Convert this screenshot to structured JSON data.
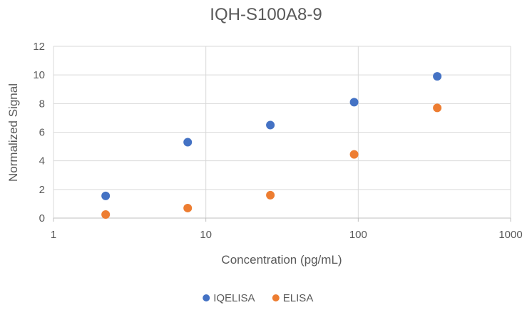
{
  "chart_data": {
    "type": "scatter",
    "title": "IQH-S100A8-9",
    "xlabel": "Concentration (pg/mL)",
    "ylabel": "Normalized Signal",
    "x_scale": "log10",
    "xlim": [
      1,
      1000
    ],
    "ylim": [
      0,
      12
    ],
    "x_ticks": [
      1,
      10,
      100,
      1000
    ],
    "x_tick_labels": [
      "1",
      "10",
      "100",
      "1000"
    ],
    "y_ticks": [
      0,
      2,
      4,
      6,
      8,
      10,
      12
    ],
    "y_tick_labels": [
      "0",
      "2",
      "4",
      "6",
      "8",
      "10",
      "12"
    ],
    "grid": true,
    "legend_position": "bottom",
    "series": [
      {
        "name": "IQELISA",
        "color": "#4472C4",
        "x": [
          2.2,
          7.6,
          26.5,
          94,
          330
        ],
        "y": [
          1.55,
          5.3,
          6.5,
          8.1,
          9.9
        ]
      },
      {
        "name": "ELISA",
        "color": "#ED7D31",
        "x": [
          2.2,
          7.6,
          26.5,
          94,
          330
        ],
        "y": [
          0.25,
          0.7,
          1.6,
          4.45,
          7.7
        ]
      }
    ]
  }
}
